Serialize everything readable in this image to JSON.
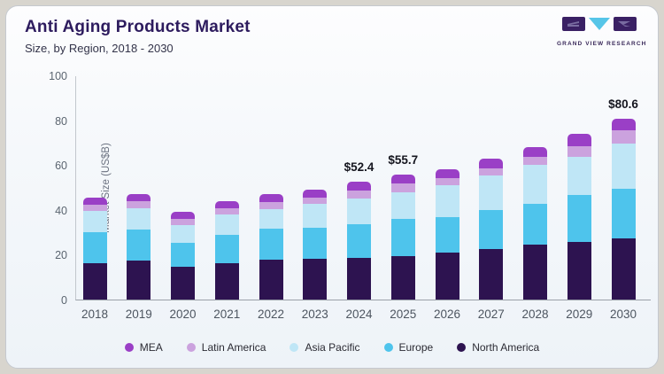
{
  "header": {
    "title": "Anti Aging Products Market",
    "subtitle": "Size, by Region, 2018 - 2030"
  },
  "logo": {
    "text": "GRAND VIEW RESEARCH"
  },
  "chart_data": {
    "type": "bar",
    "stacked": true,
    "title": "Anti Aging Products Market",
    "subtitle": "Size, by Region, 2018 - 2030",
    "ylabel": "Market Size (US$B)",
    "ylim": [
      0,
      100
    ],
    "yticks": [
      0,
      20,
      40,
      60,
      80,
      100
    ],
    "grid": false,
    "legend_position": "bottom",
    "categories": [
      "2018",
      "2019",
      "2020",
      "2021",
      "2022",
      "2023",
      "2024",
      "2025",
      "2026",
      "2027",
      "2028",
      "2029",
      "2030"
    ],
    "series": [
      {
        "name": "North America",
        "color": "#2d1350",
        "values": [
          16.4,
          17.2,
          14.6,
          16.3,
          17.6,
          18.1,
          18.5,
          19.4,
          21.0,
          22.5,
          24.5,
          25.8,
          27.3
        ]
      },
      {
        "name": "Europe",
        "color": "#4ec4ec",
        "values": [
          13.8,
          14.1,
          10.6,
          12.4,
          14.1,
          14.0,
          15.0,
          16.7,
          15.9,
          17.5,
          18.2,
          20.8,
          22.2
        ]
      },
      {
        "name": "Asia Pacific",
        "color": "#bfe6f6",
        "values": [
          9.3,
          9.3,
          8.1,
          9.3,
          8.6,
          10.6,
          11.5,
          11.9,
          14.1,
          15.2,
          17.5,
          17.2,
          20.1
        ]
      },
      {
        "name": "Latin America",
        "color": "#cba2de",
        "values": [
          2.7,
          3.1,
          2.8,
          2.6,
          3.0,
          2.9,
          3.6,
          3.6,
          3.3,
          3.3,
          3.6,
          4.4,
          5.9
        ]
      },
      {
        "name": "MEA",
        "color": "#9a3fc6",
        "values": [
          3.3,
          3.5,
          3.2,
          3.3,
          3.7,
          3.6,
          3.8,
          4.1,
          3.9,
          4.4,
          4.3,
          5.6,
          5.1
        ]
      }
    ],
    "legend_order": [
      "MEA",
      "Latin America",
      "Asia Pacific",
      "Europe",
      "North America"
    ],
    "annotations": [
      {
        "category": "2024",
        "label": "$52.4"
      },
      {
        "category": "2025",
        "label": "$55.7"
      },
      {
        "category": "2030",
        "label": "$80.6"
      }
    ]
  }
}
